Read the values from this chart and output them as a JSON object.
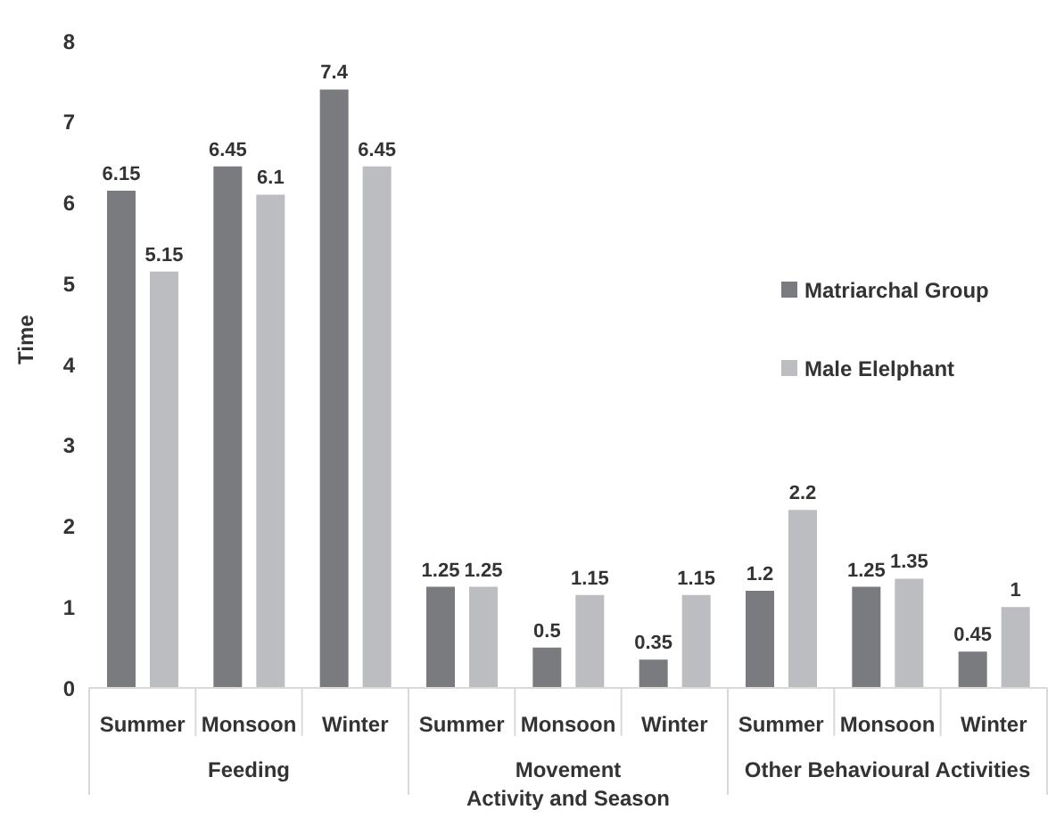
{
  "chart_data": {
    "type": "bar",
    "xlabel": "Activity and Season",
    "ylabel": "Time",
    "categories": [
      "Summer",
      "Monsoon",
      "Winter",
      "Summer",
      "Monsoon",
      "Winter",
      "Summer",
      "Monsoon",
      "Winter"
    ],
    "annotations": [
      "Feeding",
      "Movement",
      "Other Behavioural Activities"
    ],
    "series": [
      {
        "name": "Matriarchal Group",
        "color": "#7a7b7f",
        "values": [
          6.15,
          6.45,
          7.4,
          1.25,
          0.5,
          0.35,
          1.2,
          1.25,
          0.45
        ]
      },
      {
        "name": "Male Elelphant",
        "color": "#bcbdc0",
        "values": [
          5.15,
          6.1,
          6.45,
          1.25,
          1.15,
          1.15,
          2.2,
          1.35,
          1
        ]
      }
    ],
    "ylim": [
      0,
      8
    ],
    "yticks": [
      0,
      1,
      2,
      3,
      4,
      5,
      6,
      7,
      8
    ],
    "grid": false,
    "legend": "right",
    "data_labels": true
  }
}
